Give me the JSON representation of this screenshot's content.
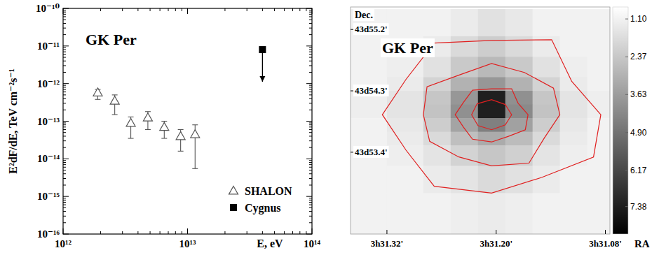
{
  "chart_data": [
    {
      "type": "scatter",
      "title": "GK Per",
      "x_label": "E, eV",
      "y_label": "E²dF/dE, TeV cm⁻²s⁻¹",
      "log": true,
      "grid": false,
      "legend": "bottom-right",
      "xlim": [
        1000000000000.0,
        100000000000000.0
      ],
      "ylim": [
        1e-16,
        1e-10
      ],
      "xticks": [
        {
          "value": 1000000000000.0,
          "label": "10¹²"
        },
        {
          "value": 10000000000000.0,
          "label": "10¹³"
        },
        {
          "value": 100000000000000.0,
          "label": "10¹⁴"
        }
      ],
      "yticks": [
        {
          "value": 1e-16,
          "label": "10⁻¹⁶"
        },
        {
          "value": 1e-15,
          "label": "10⁻¹⁵"
        },
        {
          "value": 1e-14,
          "label": "10⁻¹⁴"
        },
        {
          "value": 1e-13,
          "label": "10⁻¹³"
        },
        {
          "value": 1e-12,
          "label": "10⁻¹²"
        },
        {
          "value": 1e-11,
          "label": "10⁻¹¹"
        },
        {
          "value": 1e-10,
          "label": "10⁻¹⁰"
        }
      ],
      "series": [
        {
          "name": "SHALON",
          "marker": "open-triangle",
          "color": "#555555",
          "x": [
            1900000000000.0,
            2600000000000.0,
            3500000000000.0,
            4800000000000.0,
            6500000000000.0,
            8800000000000.0,
            11500000000000.0
          ],
          "values": [
            5.8e-13,
            3.5e-13,
            9e-14,
            1.25e-13,
            7e-14,
            4e-14,
            4.5e-14
          ],
          "errors_minus": [
            2e-13,
            2e-13,
            5.5e-14,
            6.5e-14,
            3.5e-14,
            2.4e-14,
            3.95e-14
          ],
          "errors_plus": [
            1.2e-13,
            1.5e-13,
            4e-14,
            5.5e-14,
            3e-14,
            2e-14,
            3.5e-14
          ]
        },
        {
          "name": "Cygnus",
          "marker": "square-arrow",
          "color": "#000000",
          "x": [
            40000000000000.0
          ],
          "values": [
            8e-12
          ]
        }
      ]
    },
    {
      "type": "heatmap",
      "title": "GK Per",
      "x_label": "RA",
      "y_label": "Dec.",
      "xlim": [
        31.36,
        31.075
      ],
      "ylim": [
        52.2,
        55.53
      ],
      "xticks": [
        {
          "value": 31.32,
          "label": "3h31.32'"
        },
        {
          "value": 31.2,
          "label": "3h31.20'"
        },
        {
          "value": 31.08,
          "label": "3h31.08'"
        }
      ],
      "yticks": [
        {
          "value": 55.2,
          "label": "43d55.2'"
        },
        {
          "value": 54.3,
          "label": "43d54.3'"
        },
        {
          "value": 53.4,
          "label": "43d53.4'"
        }
      ],
      "x_edges": [
        31.36,
        31.32,
        31.28,
        31.25,
        31.22,
        31.19,
        31.16,
        31.13,
        31.1,
        31.075
      ],
      "y_edges": [
        55.5,
        55.1,
        54.8,
        54.5,
        54.3,
        54.1,
        53.9,
        53.7,
        53.5,
        53.2,
        52.8,
        52.2
      ],
      "cells": [
        [
          1.1,
          1.1,
          1.1,
          1.3,
          1.6,
          1.4,
          1.1,
          1.1,
          1.1
        ],
        [
          1.1,
          1.1,
          1.3,
          1.8,
          2.2,
          1.8,
          1.3,
          1.1,
          1.1
        ],
        [
          1.1,
          1.2,
          1.6,
          2.3,
          2.8,
          2.3,
          1.6,
          1.2,
          1.1
        ],
        [
          1.1,
          1.3,
          2.0,
          3.0,
          3.8,
          3.0,
          2.0,
          1.3,
          1.1
        ],
        [
          1.2,
          1.5,
          2.4,
          3.8,
          7.38,
          4.0,
          2.4,
          1.5,
          1.2
        ],
        [
          1.2,
          1.5,
          2.5,
          4.0,
          7.38,
          4.2,
          2.5,
          1.5,
          1.2
        ],
        [
          1.1,
          1.4,
          2.2,
          3.4,
          4.5,
          3.5,
          2.2,
          1.4,
          1.1
        ],
        [
          1.1,
          1.3,
          1.8,
          2.6,
          3.2,
          2.7,
          1.8,
          1.3,
          1.1
        ],
        [
          1.1,
          1.2,
          1.5,
          2.0,
          2.4,
          2.1,
          1.5,
          1.2,
          1.1
        ],
        [
          1.1,
          1.1,
          1.3,
          1.5,
          1.8,
          1.6,
          1.3,
          1.1,
          1.1
        ],
        [
          1.1,
          1.1,
          1.1,
          1.2,
          1.3,
          1.2,
          1.1,
          1.1,
          1.1
        ]
      ],
      "color_range": [
        0.7,
        8.3
      ],
      "color_ticks": [
        {
          "value": 1.1,
          "label": "1.10"
        },
        2.37,
        3.63,
        {
          "value": 4.9,
          "label": "4.90"
        },
        6.17,
        7.38
      ],
      "color": "#e02020",
      "contours": [
        {
          "ra": [
            31.325,
            31.299,
            31.268,
            31.205,
            31.139,
            31.117,
            31.085,
            31.093,
            31.15,
            31.205,
            31.268,
            31.299
          ],
          "dec": [
            53.95,
            54.47,
            55.0,
            55.04,
            55.05,
            54.44,
            53.95,
            53.33,
            53.03,
            52.8,
            52.9,
            53.43
          ]
        },
        {
          "ra": [
            31.28,
            31.276,
            31.239,
            31.205,
            31.169,
            31.137,
            31.13,
            31.147,
            31.164,
            31.205,
            31.241,
            31.273
          ],
          "dec": [
            53.95,
            54.36,
            54.54,
            54.7,
            54.57,
            54.34,
            53.95,
            53.61,
            53.24,
            53.2,
            53.33,
            53.56
          ]
        },
        {
          "ra": [
            31.245,
            31.236,
            31.226,
            31.205,
            31.183,
            31.176,
            31.165,
            31.168,
            31.187,
            31.205,
            31.226,
            31.236
          ],
          "dec": [
            53.95,
            54.13,
            54.31,
            54.33,
            54.33,
            54.12,
            53.95,
            53.73,
            53.63,
            53.55,
            53.59,
            53.77
          ]
        },
        {
          "ra": [
            31.227,
            31.221,
            31.205,
            31.19,
            31.183,
            31.19,
            31.205,
            31.22
          ],
          "dec": [
            53.95,
            54.11,
            54.17,
            54.1,
            53.95,
            53.8,
            53.73,
            53.79
          ]
        }
      ]
    }
  ]
}
